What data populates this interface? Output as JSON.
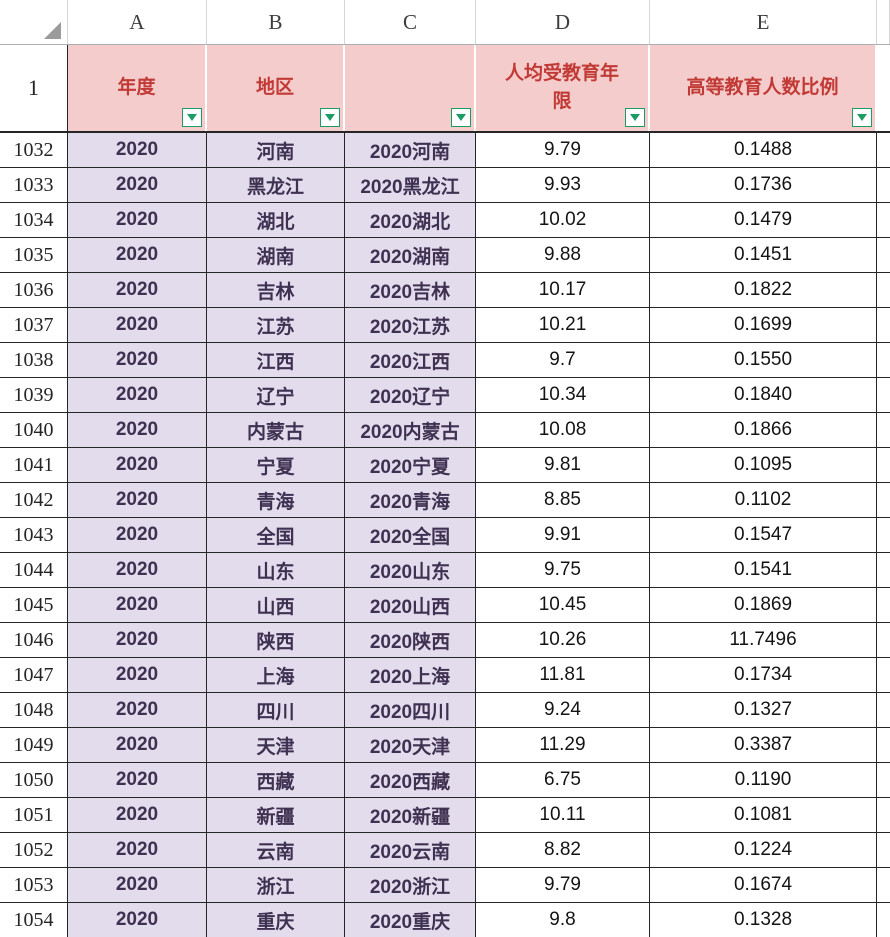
{
  "colors": {
    "header_bg": "#f3cccb",
    "header_text": "#c23a36",
    "data_bg": "#e2dcec",
    "data_text": "#3f3151",
    "grid": "#262626",
    "filter_green": "#1c9c64"
  },
  "sheet": {
    "column_letters": [
      "A",
      "B",
      "C",
      "D",
      "E"
    ],
    "header": {
      "row_number": "1",
      "cells": [
        {
          "label": "年度"
        },
        {
          "label": "地区"
        },
        {
          "label": ""
        },
        {
          "label": "人均受教育年限"
        },
        {
          "label": "高等教育人数比例"
        }
      ]
    },
    "rows": [
      {
        "n": "1032",
        "year": "2020",
        "region": "河南",
        "combo": "2020河南",
        "edu_years": "9.79",
        "ratio": "0.1488"
      },
      {
        "n": "1033",
        "year": "2020",
        "region": "黑龙江",
        "combo": "2020黑龙江",
        "edu_years": "9.93",
        "ratio": "0.1736"
      },
      {
        "n": "1034",
        "year": "2020",
        "region": "湖北",
        "combo": "2020湖北",
        "edu_years": "10.02",
        "ratio": "0.1479"
      },
      {
        "n": "1035",
        "year": "2020",
        "region": "湖南",
        "combo": "2020湖南",
        "edu_years": "9.88",
        "ratio": "0.1451"
      },
      {
        "n": "1036",
        "year": "2020",
        "region": "吉林",
        "combo": "2020吉林",
        "edu_years": "10.17",
        "ratio": "0.1822"
      },
      {
        "n": "1037",
        "year": "2020",
        "region": "江苏",
        "combo": "2020江苏",
        "edu_years": "10.21",
        "ratio": "0.1699"
      },
      {
        "n": "1038",
        "year": "2020",
        "region": "江西",
        "combo": "2020江西",
        "edu_years": "9.7",
        "ratio": "0.1550"
      },
      {
        "n": "1039",
        "year": "2020",
        "region": "辽宁",
        "combo": "2020辽宁",
        "edu_years": "10.34",
        "ratio": "0.1840"
      },
      {
        "n": "1040",
        "year": "2020",
        "region": "内蒙古",
        "combo": "2020内蒙古",
        "edu_years": "10.08",
        "ratio": "0.1866"
      },
      {
        "n": "1041",
        "year": "2020",
        "region": "宁夏",
        "combo": "2020宁夏",
        "edu_years": "9.81",
        "ratio": "0.1095"
      },
      {
        "n": "1042",
        "year": "2020",
        "region": "青海",
        "combo": "2020青海",
        "edu_years": "8.85",
        "ratio": "0.1102"
      },
      {
        "n": "1043",
        "year": "2020",
        "region": "全国",
        "combo": "2020全国",
        "edu_years": "9.91",
        "ratio": "0.1547"
      },
      {
        "n": "1044",
        "year": "2020",
        "region": "山东",
        "combo": "2020山东",
        "edu_years": "9.75",
        "ratio": "0.1541"
      },
      {
        "n": "1045",
        "year": "2020",
        "region": "山西",
        "combo": "2020山西",
        "edu_years": "10.45",
        "ratio": "0.1869"
      },
      {
        "n": "1046",
        "year": "2020",
        "region": "陕西",
        "combo": "2020陕西",
        "edu_years": "10.26",
        "ratio": "11.7496"
      },
      {
        "n": "1047",
        "year": "2020",
        "region": "上海",
        "combo": "2020上海",
        "edu_years": "11.81",
        "ratio": "0.1734"
      },
      {
        "n": "1048",
        "year": "2020",
        "region": "四川",
        "combo": "2020四川",
        "edu_years": "9.24",
        "ratio": "0.1327"
      },
      {
        "n": "1049",
        "year": "2020",
        "region": "天津",
        "combo": "2020天津",
        "edu_years": "11.29",
        "ratio": "0.3387"
      },
      {
        "n": "1050",
        "year": "2020",
        "region": "西藏",
        "combo": "2020西藏",
        "edu_years": "6.75",
        "ratio": "0.1190"
      },
      {
        "n": "1051",
        "year": "2020",
        "region": "新疆",
        "combo": "2020新疆",
        "edu_years": "10.11",
        "ratio": "0.1081"
      },
      {
        "n": "1052",
        "year": "2020",
        "region": "云南",
        "combo": "2020云南",
        "edu_years": "8.82",
        "ratio": "0.1224"
      },
      {
        "n": "1053",
        "year": "2020",
        "region": "浙江",
        "combo": "2020浙江",
        "edu_years": "9.79",
        "ratio": "0.1674"
      },
      {
        "n": "1054",
        "year": "2020",
        "region": "重庆",
        "combo": "2020重庆",
        "edu_years": "9.8",
        "ratio": "0.1328"
      }
    ]
  }
}
